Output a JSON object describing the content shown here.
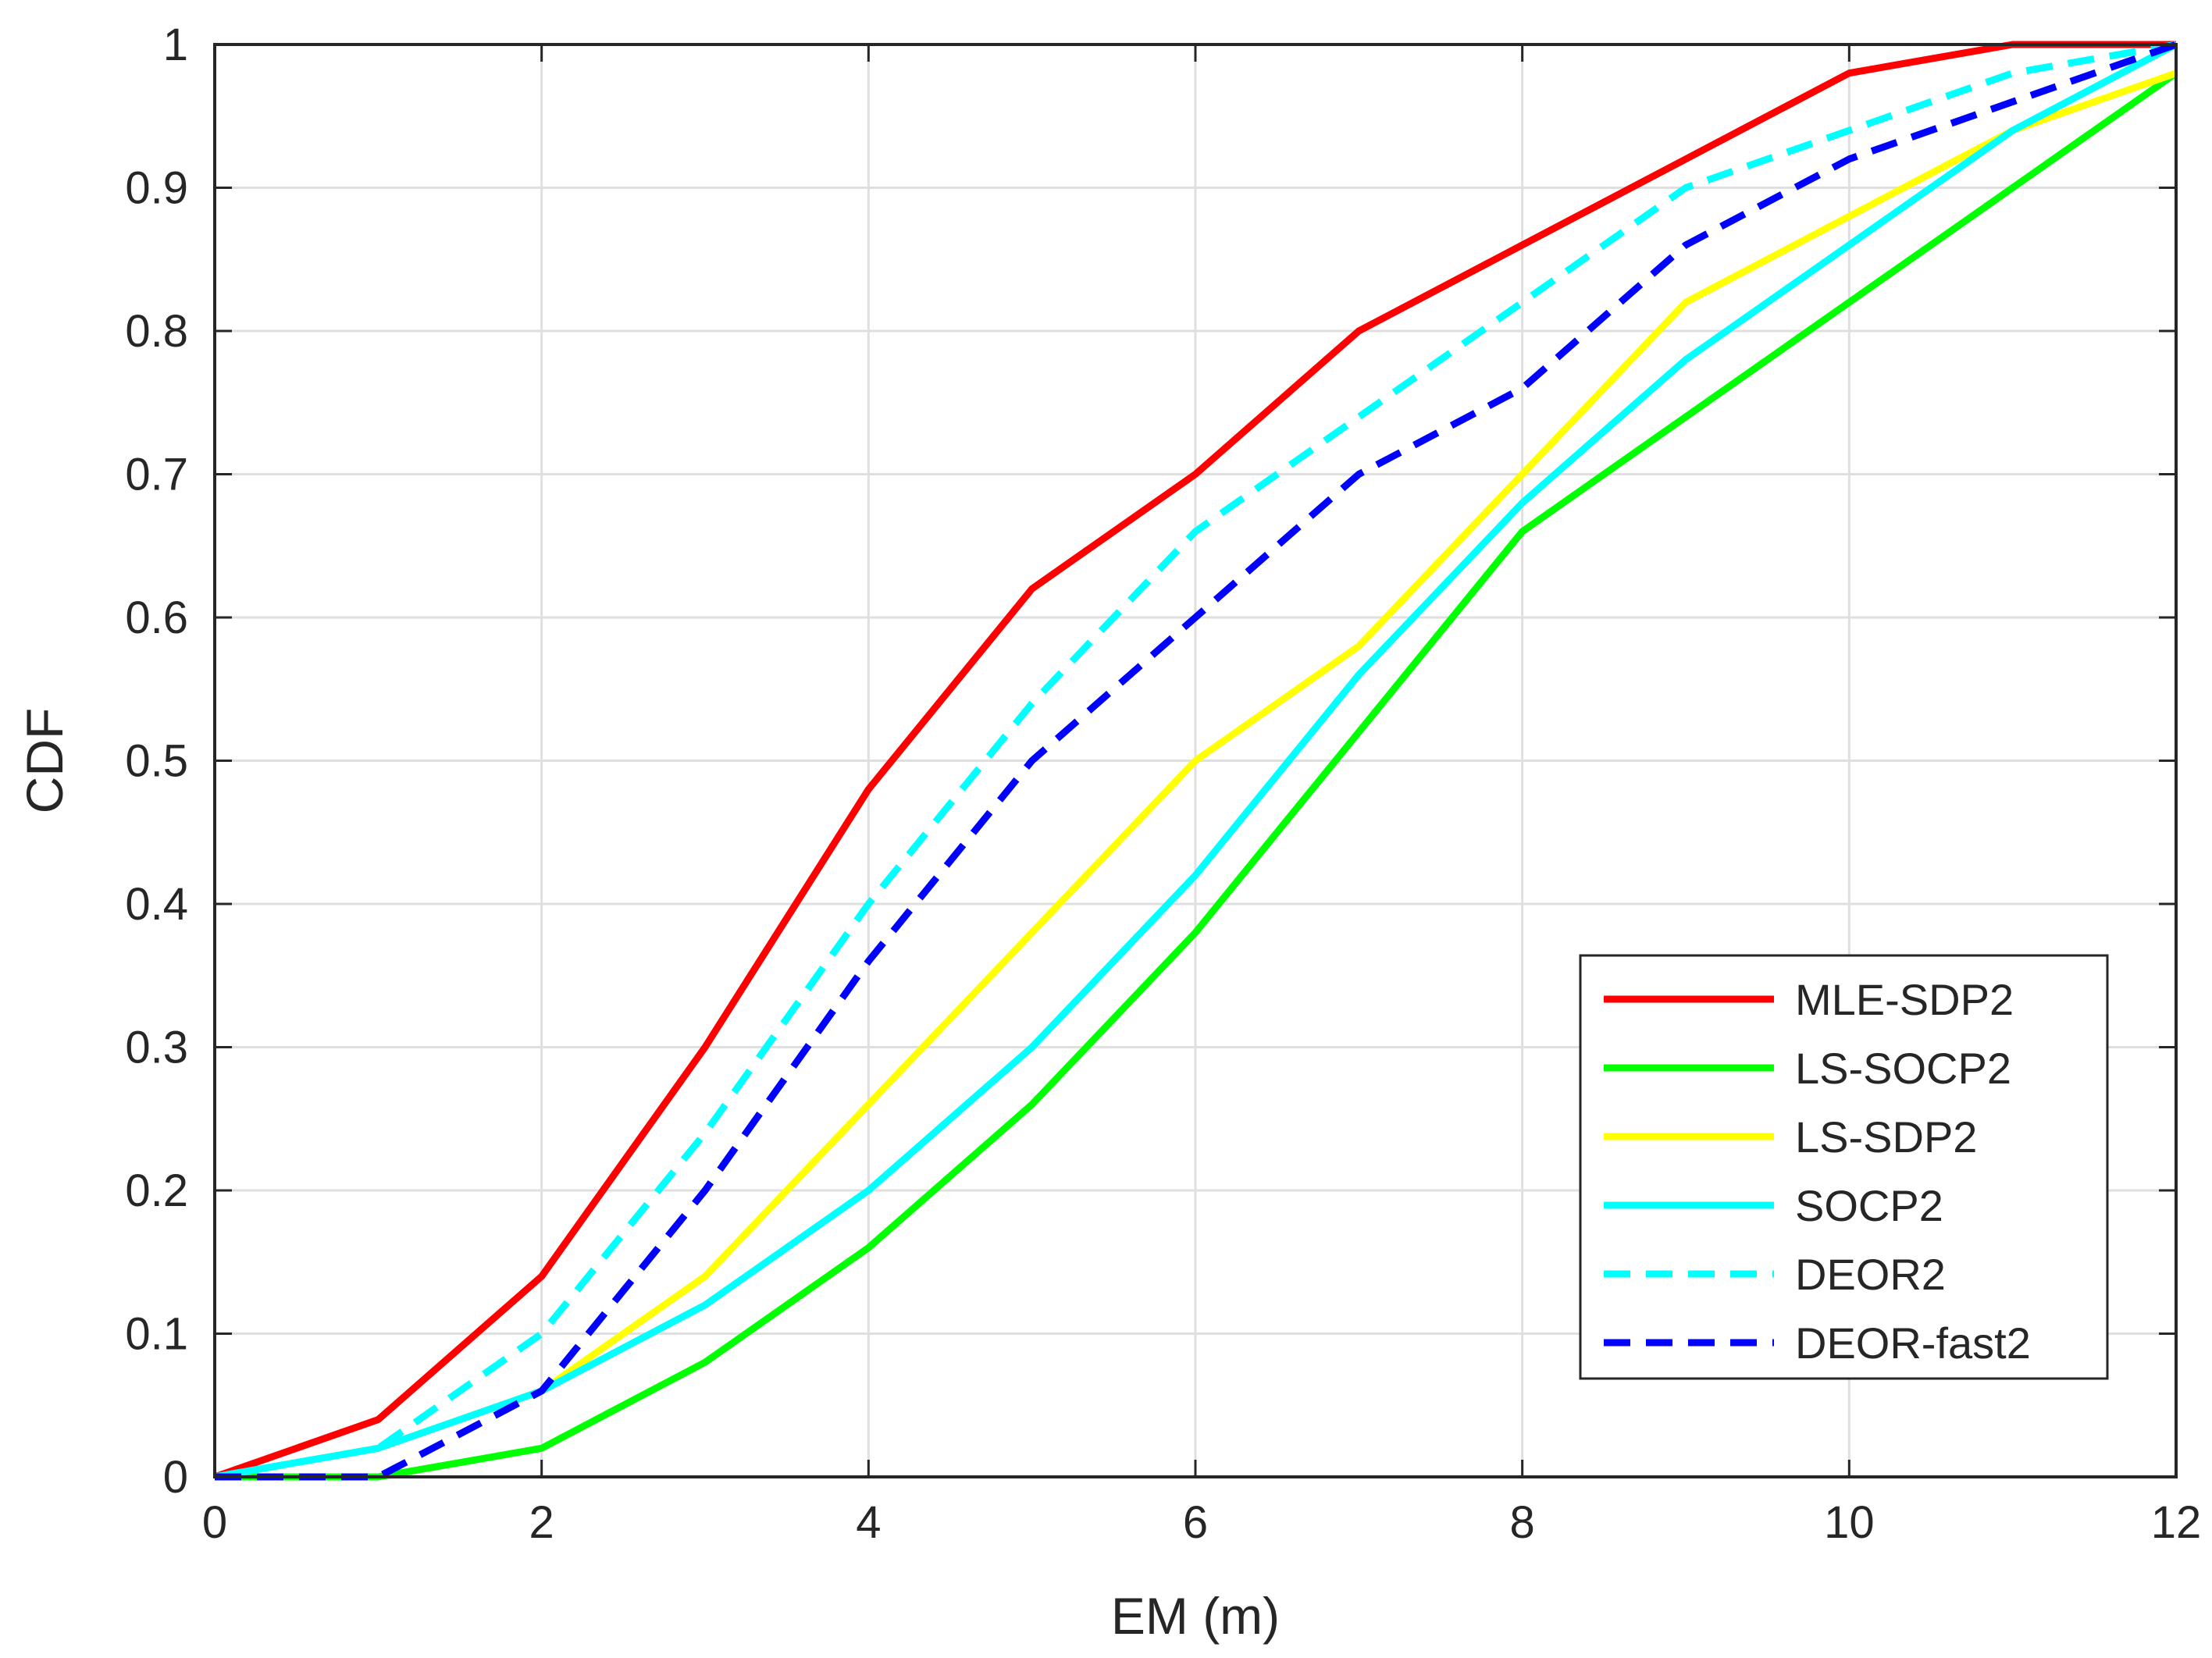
{
  "chart_data": {
    "type": "line",
    "title": "",
    "xlabel": "EM (m)",
    "ylabel": "CDF",
    "xlim": [
      0,
      12
    ],
    "ylim": [
      0,
      1
    ],
    "grid": true,
    "legend_position": "bottom-right",
    "xticks": [
      0,
      2,
      4,
      6,
      8,
      10,
      12
    ],
    "xtick_labels": [
      "0",
      "2",
      "4",
      "6",
      "8",
      "10",
      "12"
    ],
    "yticks": [
      0,
      0.1,
      0.2,
      0.3,
      0.4,
      0.5,
      0.6,
      0.7,
      0.8,
      0.9,
      1
    ],
    "ytick_labels": [
      "0",
      "0.1",
      "0.2",
      "0.3",
      "0.4",
      "0.5",
      "0.6",
      "0.7",
      "0.8",
      "0.9",
      "1"
    ],
    "x": [
      0,
      1,
      2,
      3,
      4,
      5,
      6,
      7,
      8,
      9,
      10,
      11,
      12
    ],
    "series": [
      {
        "name": "MLE-SDP2",
        "color": "#ff0000",
        "style": "solid",
        "values": [
          0,
          0.04,
          0.14,
          0.3,
          0.48,
          0.62,
          0.7,
          0.8,
          0.86,
          0.92,
          0.98,
          1.0,
          1.0
        ]
      },
      {
        "name": "LS-SOCP2",
        "color": "#00ff00",
        "style": "solid",
        "values": [
          0,
          0.0,
          0.02,
          0.08,
          0.16,
          0.26,
          0.38,
          0.52,
          0.66,
          0.74,
          0.82,
          0.9,
          0.98
        ]
      },
      {
        "name": "LS-SDP2",
        "color": "#ffff00",
        "style": "solid",
        "values": [
          0,
          0.02,
          0.06,
          0.14,
          0.26,
          0.38,
          0.5,
          0.58,
          0.7,
          0.82,
          0.88,
          0.94,
          0.98
        ]
      },
      {
        "name": "SOCP2",
        "color": "#00ffff",
        "style": "solid",
        "values": [
          0,
          0.02,
          0.06,
          0.12,
          0.2,
          0.3,
          0.42,
          0.56,
          0.68,
          0.78,
          0.86,
          0.94,
          1.0
        ]
      },
      {
        "name": "DEOR2",
        "color": "#00ffff",
        "style": "dashed",
        "values": [
          0,
          0.02,
          0.1,
          0.24,
          0.4,
          0.54,
          0.66,
          0.74,
          0.82,
          0.9,
          0.94,
          0.98,
          1.0
        ]
      },
      {
        "name": "DEOR-fast2",
        "color": "#0000ff",
        "style": "dashed",
        "values": [
          0,
          0.0,
          0.06,
          0.2,
          0.36,
          0.5,
          0.6,
          0.7,
          0.76,
          0.86,
          0.92,
          0.96,
          1.0
        ]
      }
    ]
  }
}
